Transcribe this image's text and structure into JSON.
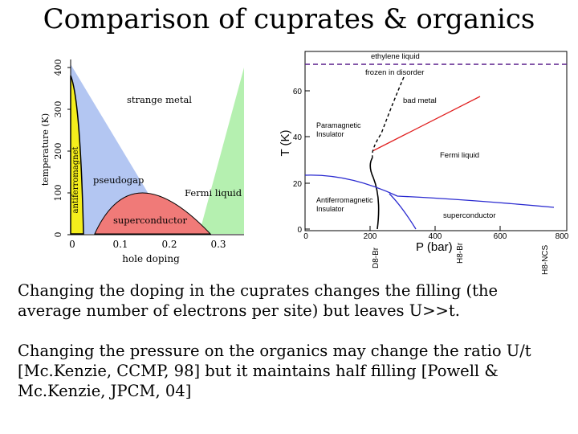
{
  "slide": {
    "title": "Comparison of cuprates & organics",
    "paragraphs": [
      "Changing the doping in the cuprates changes the filling (the average number of electrons per site) but leaves U>>t.",
      "Changing the pressure on the organics may change the ratio U/t [Mc.Kenzie, CCMP, 98] but it maintains half filling [Powell & Mc.Kenzie, JPCM, 04]"
    ]
  },
  "cuprate_diagram": {
    "ylabel": "temperature (K)",
    "xlabel": "hole doping",
    "y_ticks": [
      "0",
      "100",
      "200",
      "300",
      "400"
    ],
    "x_ticks": [
      "0",
      "0.1",
      "0.2",
      "0.3"
    ],
    "regions": {
      "strange_metal": "strange metal",
      "pseudogap": "pseudogap",
      "fermi_liquid": "Fermi liquid",
      "superconductor": "superconductor",
      "antiferromagnet": "antiferromagnet"
    },
    "colors": {
      "pseudogap": "#b3c6f2",
      "fermi_liquid": "#b5f0b0",
      "superconductor": "#f07a78",
      "antiferromagnet": "#f5ee1c"
    }
  },
  "organic_diagram": {
    "ylabel": "T (K)",
    "xlabel": "P (bar)",
    "y_ticks": [
      "0",
      "20",
      "40",
      "60"
    ],
    "x_ticks": [
      "0",
      "200",
      "400",
      "600",
      "800"
    ],
    "compounds": [
      "D8-Br",
      "H8-Br",
      "H8-NCS"
    ],
    "labels": {
      "ethylene": "ethylene liquid",
      "frozen": "frozen in disorder",
      "bad_metal": "bad metal",
      "paramagnetic": "Paramagnetic Insulator",
      "fermi_liquid": "Fermi liquid",
      "antiferro": "Antiferromagnetic Insulator",
      "superconductor": "superconductor"
    },
    "colors": {
      "frozen_line": "#5a1f8c",
      "bad_metal_line": "#e02020",
      "sc_line": "#2a2ad0",
      "mott_line": "#000000"
    }
  }
}
